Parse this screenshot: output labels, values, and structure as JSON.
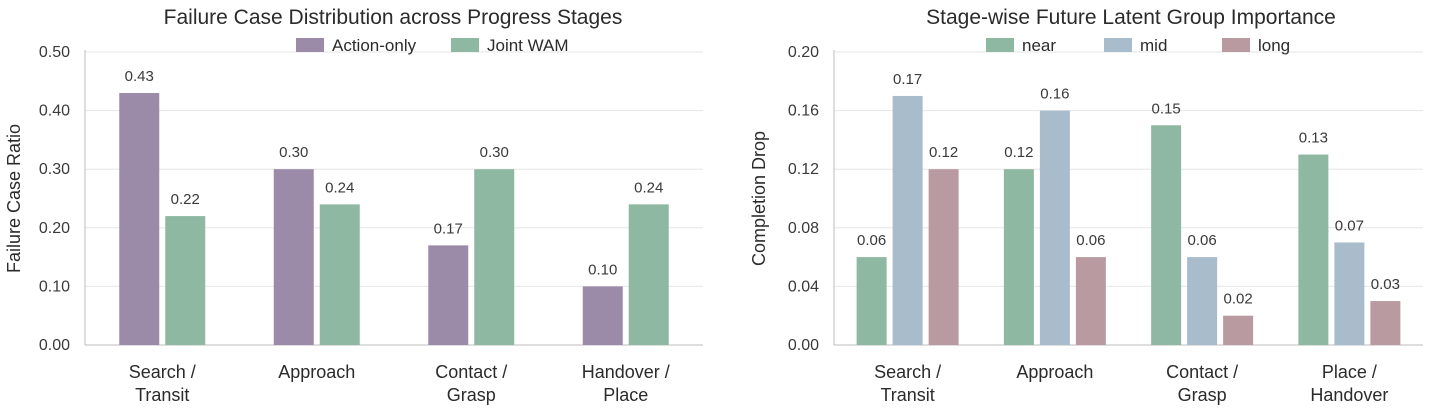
{
  "chart_data": [
    {
      "type": "bar",
      "title": "Failure Case Distribution across Progress Stages",
      "xlabel": "",
      "ylabel": "Failure Case Ratio",
      "ylim": [
        0,
        0.5
      ],
      "yticks": [
        "0.00",
        "0.10",
        "0.20",
        "0.30",
        "0.40",
        "0.50"
      ],
      "categories": [
        [
          "Search /",
          "Transit"
        ],
        [
          "Approach"
        ],
        [
          "Contact /",
          "Grasp"
        ],
        [
          "Handover /",
          "Place"
        ]
      ],
      "series": [
        {
          "name": "Action-only",
          "color": "#9b8aa8",
          "values": [
            0.43,
            0.3,
            0.17,
            0.1
          ],
          "labels": [
            "0.43",
            "0.30",
            "0.17",
            "0.10"
          ]
        },
        {
          "name": "Joint WAM",
          "color": "#8fb8a2",
          "values": [
            0.22,
            0.24,
            0.3,
            0.24
          ],
          "labels": [
            "0.22",
            "0.24",
            "0.30",
            "0.24"
          ]
        }
      ],
      "legend": "top-center",
      "grid": true
    },
    {
      "type": "bar",
      "title": "Stage-wise Future Latent Group Importance",
      "xlabel": "",
      "ylabel": "Completion Drop",
      "ylim": [
        0,
        0.2
      ],
      "yticks": [
        "0.00",
        "0.04",
        "0.08",
        "0.12",
        "0.16",
        "0.20"
      ],
      "categories": [
        [
          "Search /",
          "Transit"
        ],
        [
          "Approach"
        ],
        [
          "Contact /",
          "Grasp"
        ],
        [
          "Place /",
          "Handover"
        ]
      ],
      "series": [
        {
          "name": "near",
          "color": "#8fb8a2",
          "values": [
            0.06,
            0.12,
            0.15,
            0.13
          ],
          "labels": [
            "0.06",
            "0.12",
            "0.15",
            "0.13"
          ]
        },
        {
          "name": "mid",
          "color": "#a8bccb",
          "values": [
            0.17,
            0.16,
            0.06,
            0.07
          ],
          "labels": [
            "0.17",
            "0.16",
            "0.06",
            "0.07"
          ]
        },
        {
          "name": "long",
          "color": "#b89aa0",
          "values": [
            0.12,
            0.06,
            0.02,
            0.03
          ],
          "labels": [
            "0.12",
            "0.06",
            "0.02",
            "0.03"
          ]
        }
      ],
      "legend": "top-center",
      "grid": true
    }
  ]
}
